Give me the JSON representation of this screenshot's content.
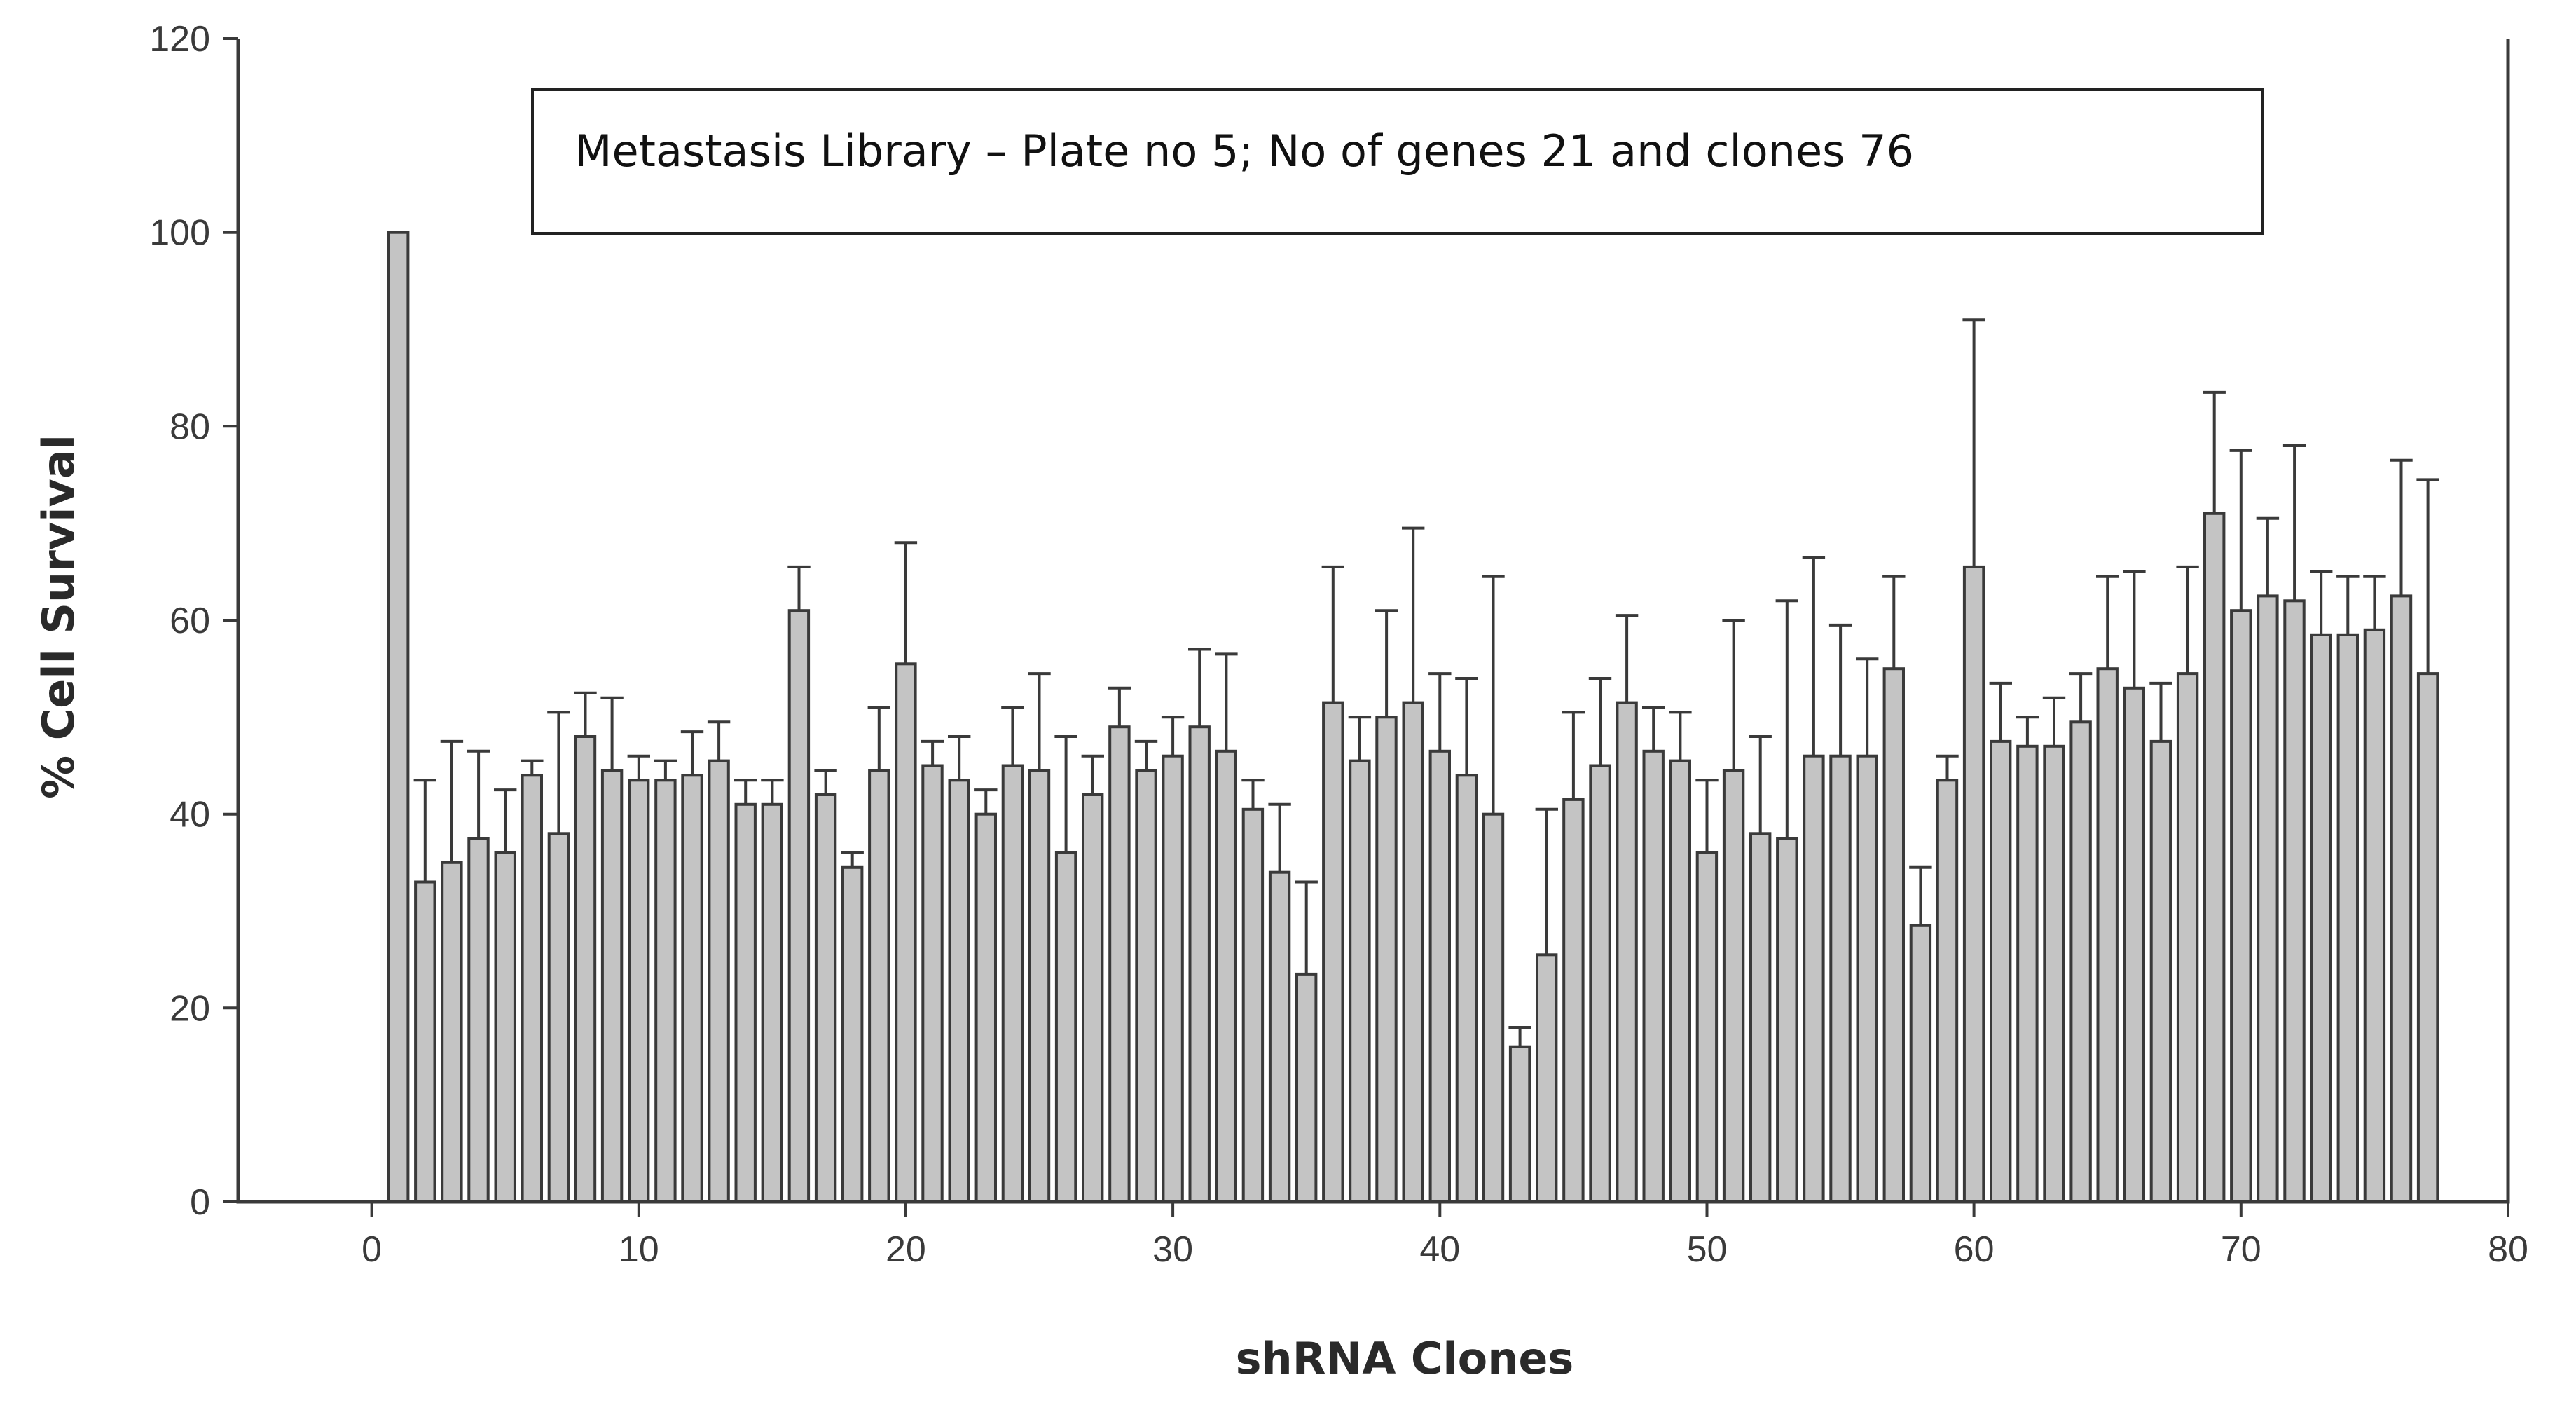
{
  "chart_data": {
    "type": "bar",
    "title": "",
    "annotation": "Metastasis Library – Plate no 5; No of genes 21 and clones 76",
    "xlabel": "shRNA Clones",
    "ylabel": "% Cell Survival",
    "xlim": [
      -5,
      80
    ],
    "ylim": [
      0,
      120
    ],
    "x_ticks": [
      0,
      10,
      20,
      30,
      40,
      50,
      60,
      70,
      80
    ],
    "y_ticks": [
      0,
      20,
      40,
      60,
      80,
      100,
      120
    ],
    "grid": false,
    "bar_color": "#c4c4c4",
    "x": [
      1,
      2,
      3,
      4,
      5,
      6,
      7,
      8,
      9,
      10,
      11,
      12,
      13,
      14,
      15,
      16,
      17,
      18,
      19,
      20,
      21,
      22,
      23,
      24,
      25,
      26,
      27,
      28,
      29,
      30,
      31,
      32,
      33,
      34,
      35,
      36,
      37,
      38,
      39,
      40,
      41,
      42,
      43,
      44,
      45,
      46,
      47,
      48,
      49,
      50,
      51,
      52,
      53,
      54,
      55,
      56,
      57,
      58,
      59,
      60,
      61,
      62,
      63,
      64,
      65,
      66,
      67,
      68,
      69,
      70,
      71,
      72,
      73,
      74,
      75,
      76,
      77
    ],
    "values": [
      100,
      33,
      35,
      37.5,
      36,
      44,
      38,
      48,
      44.5,
      43.5,
      43.5,
      44,
      45.5,
      41,
      41,
      61,
      42,
      34.5,
      44.5,
      55.5,
      45,
      43.5,
      40,
      45,
      44.5,
      36,
      42,
      49,
      44.5,
      46,
      49,
      46.5,
      40.5,
      34,
      23.5,
      51.5,
      45.5,
      50,
      51.5,
      46.5,
      44,
      40,
      16,
      25.5,
      41.5,
      45,
      51.5,
      46.5,
      45.5,
      36,
      44.5,
      38,
      37.5,
      46,
      46,
      46,
      55,
      28.5,
      43.5,
      65.5,
      47.5,
      47,
      47,
      49.5,
      55,
      53,
      47.5,
      54.5,
      71,
      61,
      62.5,
      62,
      58.5,
      58.5,
      59,
      62.5,
      54.5
    ],
    "errors": [
      0,
      10.5,
      12.5,
      9,
      6.5,
      1.5,
      12.5,
      4.5,
      7.5,
      2.5,
      2,
      4.5,
      4,
      2.5,
      2.5,
      4.5,
      2.5,
      1.5,
      6.5,
      12.5,
      2.5,
      4.5,
      2.5,
      6,
      10,
      12,
      4,
      4,
      3,
      4,
      8,
      10,
      3,
      7,
      9.5,
      14,
      4.5,
      11,
      18,
      8,
      10,
      24.5,
      2,
      15,
      9,
      9,
      9,
      4.5,
      5,
      7.5,
      15.5,
      10,
      24.5,
      20.5,
      13.5,
      10,
      9.5,
      6,
      2.5,
      25.5,
      6,
      3,
      5,
      5,
      9.5,
      12,
      6,
      11,
      12.5,
      16.5,
      8,
      16,
      6.5,
      6,
      5.5,
      14,
      20
    ]
  }
}
